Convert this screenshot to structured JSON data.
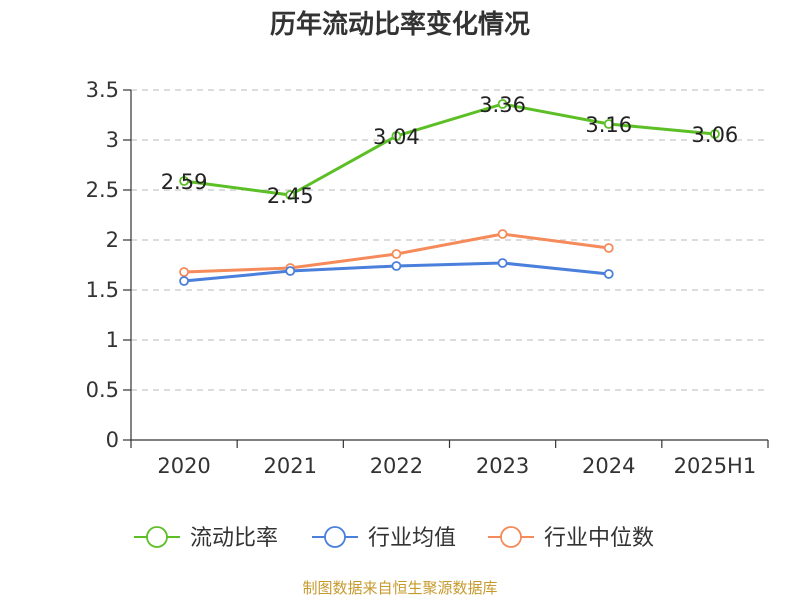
{
  "chart_data": {
    "type": "line",
    "title": "历年流动比率变化情况",
    "categories": [
      "2020",
      "2021",
      "2022",
      "2023",
      "2024",
      "2025H1"
    ],
    "ylim": [
      0,
      3.5
    ],
    "yticks": [
      "0",
      "0.5",
      "1",
      "1.5",
      "2",
      "2.5",
      "3",
      "3.5"
    ],
    "grid": true,
    "legend_position": "bottom-center",
    "series": [
      {
        "name": "流动比率",
        "color": "#5cbf26",
        "values": [
          2.59,
          2.45,
          3.04,
          3.36,
          3.16,
          3.06
        ],
        "data_labels": [
          "2.59",
          "2.45",
          "3.04",
          "3.36",
          "3.16",
          "3.06"
        ]
      },
      {
        "name": "行业均值",
        "color": "#4a7fdb",
        "values": [
          1.59,
          1.69,
          1.74,
          1.77,
          1.66,
          null
        ]
      },
      {
        "name": "行业中位数",
        "color": "#f58a5a",
        "values": [
          1.68,
          1.72,
          1.86,
          2.06,
          1.92,
          null
        ]
      }
    ],
    "source": "制图数据来自恒生聚源数据库",
    "source_color": "#c79a2e"
  }
}
